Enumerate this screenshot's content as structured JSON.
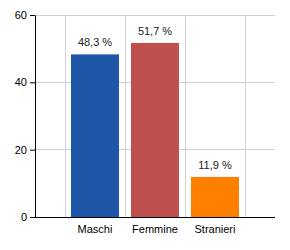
{
  "chart_data": {
    "type": "bar",
    "categories": [
      "Maschi",
      "Femmine",
      "Stranieri"
    ],
    "values": [
      48.3,
      51.7,
      11.9
    ],
    "value_labels": [
      "48,3 %",
      "51,7 %",
      "11,9 %"
    ],
    "colors": [
      "#1f57a8",
      "#c0504d",
      "#ff8000"
    ],
    "ylim": [
      0,
      60
    ],
    "yticks": [
      0,
      20,
      40,
      60
    ],
    "grid": true,
    "data_labels": true
  }
}
